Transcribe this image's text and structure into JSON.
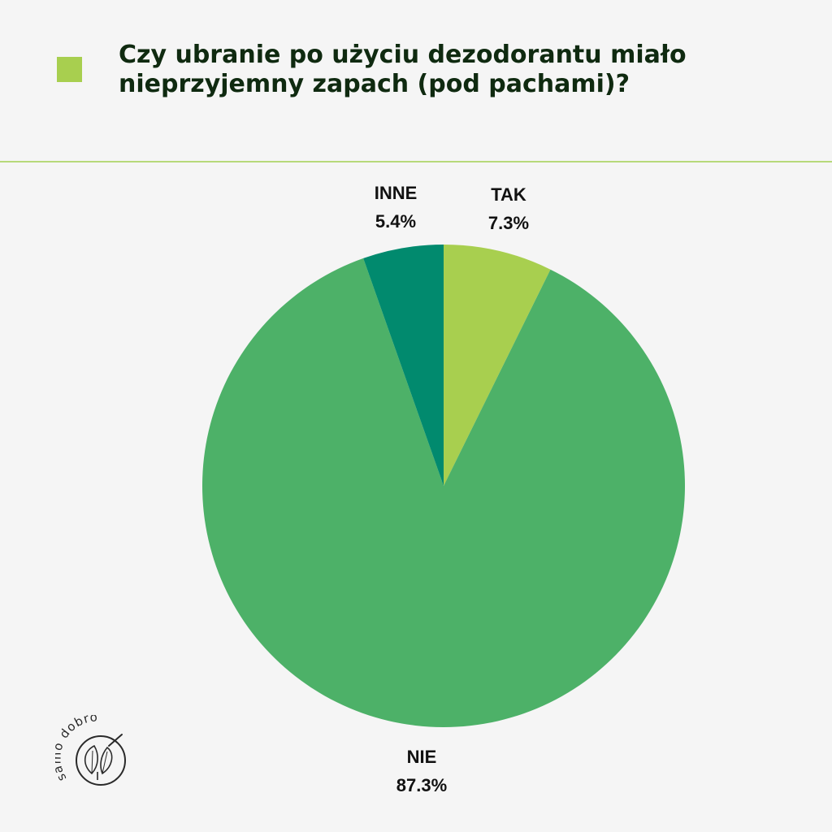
{
  "title": "Czy ubranie po użyciu dezodorantu miało nieprzyjemny zapach (pod pachami)?",
  "logo_text": "samo dobro",
  "colors": {
    "background": "#f5f5f5",
    "title_text": "#0f2a10",
    "accent": "#a8cf4f",
    "divider": "#b7d97a"
  },
  "chart_data": {
    "type": "pie",
    "title": "Czy ubranie po użyciu dezodorantu miało nieprzyjemny zapach (pod pachami)?",
    "start": "12 o'clock",
    "direction": "clockwise",
    "legend": "none",
    "slices": [
      {
        "label": "TAK",
        "value": 7.3,
        "value_label": "7.3%",
        "color": "#a8cf4f"
      },
      {
        "label": "NIE",
        "value": 87.3,
        "value_label": "87.3%",
        "color": "#4db168"
      },
      {
        "label": "INNE",
        "value": 5.4,
        "value_label": "5.4%",
        "color": "#018a6e"
      }
    ]
  }
}
